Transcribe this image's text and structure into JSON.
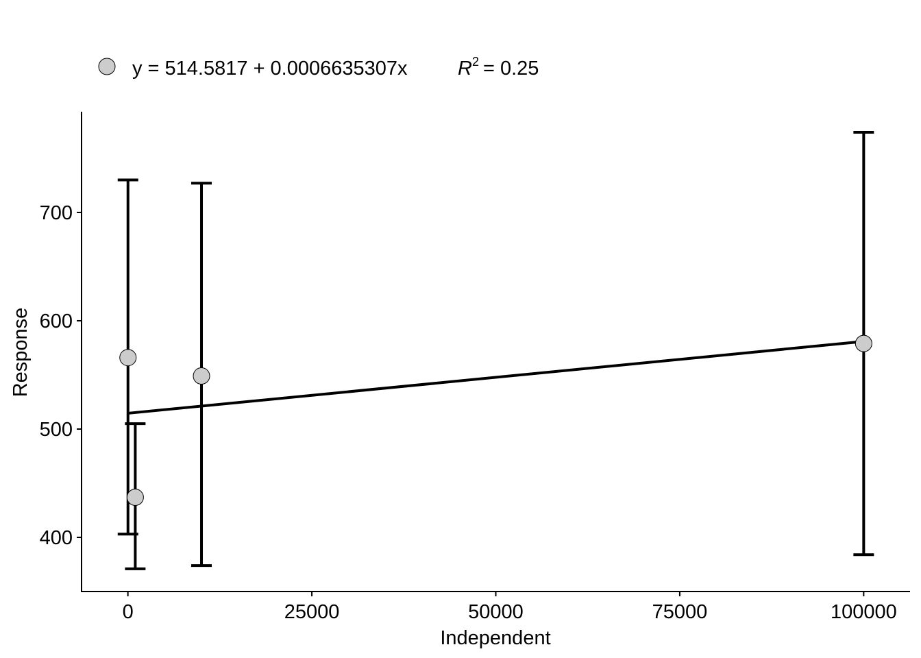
{
  "chart_data": {
    "type": "scatter",
    "xlabel": "Independent",
    "ylabel": "Response",
    "xlim": [
      -6300,
      106300
    ],
    "ylim": [
      350,
      793
    ],
    "x_ticks": [
      0,
      25000,
      50000,
      75000,
      100000
    ],
    "y_ticks": [
      400,
      500,
      600,
      700
    ],
    "grid": false,
    "legend_position": "top-left",
    "points": [
      {
        "x": 10,
        "y": 566,
        "err_low": 403,
        "err_high": 730
      },
      {
        "x": 1000,
        "y": 437,
        "err_low": 371,
        "err_high": 505
      },
      {
        "x": 10000,
        "y": 549,
        "err_low": 374,
        "err_high": 727
      },
      {
        "x": 100000,
        "y": 579,
        "err_low": 384,
        "err_high": 774
      }
    ],
    "fit": {
      "intercept": 514.5817,
      "slope": 0.0006635307,
      "x_range": [
        0,
        100000
      ]
    },
    "legend": {
      "equation": "y = 514.5817 + 0.0006635307x",
      "r2_symbol": "R",
      "r2_superscript": "2",
      "r2_value": "= 0.25"
    },
    "colors": {
      "point_fill": "#cccccc",
      "line": "#000000",
      "axis": "#000000"
    }
  }
}
